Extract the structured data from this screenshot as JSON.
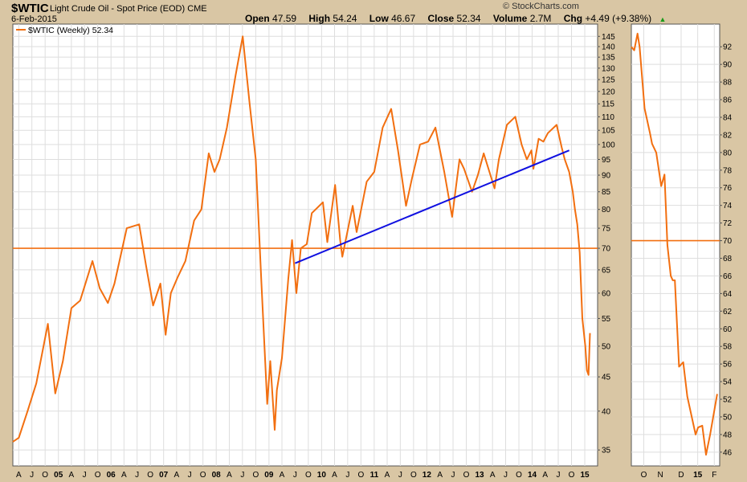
{
  "header": {
    "symbol": "$WTIC",
    "description": "Light Crude Oil - Spot Price (EOD)",
    "exchange": "CME",
    "date": "6-Feb-2015",
    "brand": "© StockCharts.com",
    "open_label": "Open",
    "open": "47.59",
    "high_label": "High",
    "high": "54.24",
    "low_label": "Low",
    "low": "46.67",
    "close_label": "Close",
    "close": "52.34",
    "volume_label": "Volume",
    "volume": "2.7M",
    "chg_label": "Chg",
    "chg": "+4.49 (+9.38%)",
    "chg_arrow": "▲"
  },
  "colors": {
    "price": "#f26f10",
    "trendline": "#1010e0",
    "frame": "#d9c6a4",
    "grid": "#dedede"
  },
  "chart_data": [
    {
      "type": "line",
      "scale": "log",
      "legend": "$WTIC (Weekly) 52.34",
      "legend_position": "top-left",
      "grid": true,
      "y_ticks": [
        35,
        40,
        45,
        50,
        55,
        60,
        65,
        70,
        75,
        80,
        85,
        90,
        95,
        100,
        105,
        110,
        115,
        120,
        125,
        130,
        135,
        140,
        145
      ],
      "ylim": [
        33.5,
        150
      ],
      "x_ticks": [
        "A",
        "J",
        "O",
        "05",
        "A",
        "J",
        "O",
        "06",
        "A",
        "J",
        "O",
        "07",
        "A",
        "J",
        "O",
        "08",
        "A",
        "J",
        "O",
        "09",
        "A",
        "J",
        "O",
        "10",
        "A",
        "J",
        "O",
        "11",
        "A",
        "J",
        "O",
        "12",
        "A",
        "J",
        "O",
        "13",
        "A",
        "J",
        "O",
        "14",
        "A",
        "J",
        "O",
        "15"
      ],
      "x_tick_dates": [
        "2004-04-01",
        "2004-07-01",
        "2004-10-01",
        "2005-01-01",
        "2005-04-01",
        "2005-07-01",
        "2005-10-01",
        "2006-01-01",
        "2006-04-01",
        "2006-07-01",
        "2006-10-01",
        "2007-01-01",
        "2007-04-01",
        "2007-07-01",
        "2007-10-01",
        "2008-01-01",
        "2008-04-01",
        "2008-07-01",
        "2008-10-01",
        "2009-01-01",
        "2009-04-01",
        "2009-07-01",
        "2009-10-01",
        "2010-01-01",
        "2010-04-01",
        "2010-07-01",
        "2010-10-01",
        "2011-01-01",
        "2011-04-01",
        "2011-07-01",
        "2011-10-01",
        "2012-01-01",
        "2012-04-01",
        "2012-07-01",
        "2012-10-01",
        "2013-01-01",
        "2013-04-01",
        "2013-07-01",
        "2013-10-01",
        "2014-01-01",
        "2014-04-01",
        "2014-07-01",
        "2014-10-01",
        "2015-01-01"
      ],
      "x_range": [
        "2004-02-20",
        "2015-02-20"
      ],
      "series": [
        {
          "color": "#f26f10",
          "x": [
            "2004-02-20",
            "2004-04-01",
            "2004-06-01",
            "2004-08-01",
            "2004-10-20",
            "2004-12-10",
            "2005-02-01",
            "2005-04-01",
            "2005-06-01",
            "2005-08-25",
            "2005-10-15",
            "2005-12-10",
            "2006-01-25",
            "2006-04-20",
            "2006-07-15",
            "2006-09-01",
            "2006-10-20",
            "2006-12-10",
            "2007-01-15",
            "2007-02-20",
            "2007-04-10",
            "2007-06-01",
            "2007-08-01",
            "2007-09-20",
            "2007-11-10",
            "2007-12-20",
            "2008-01-25",
            "2008-03-15",
            "2008-05-15",
            "2008-07-03",
            "2008-08-20",
            "2008-10-01",
            "2008-11-10",
            "2008-12-20",
            "2009-01-10",
            "2009-02-10",
            "2009-02-25",
            "2009-04-01",
            "2009-05-15",
            "2009-06-10",
            "2009-07-10",
            "2009-08-10",
            "2009-09-20",
            "2009-10-25",
            "2010-01-10",
            "2010-02-10",
            "2010-04-05",
            "2010-05-10",
            "2010-05-25",
            "2010-08-05",
            "2010-09-01",
            "2010-11-10",
            "2011-01-01",
            "2011-03-01",
            "2011-04-29",
            "2011-06-15",
            "2011-08-10",
            "2011-09-20",
            "2011-11-15",
            "2012-01-10",
            "2012-03-01",
            "2012-05-01",
            "2012-06-25",
            "2012-08-15",
            "2012-09-15",
            "2012-11-10",
            "2012-12-20",
            "2013-01-30",
            "2013-04-15",
            "2013-05-15",
            "2013-07-10",
            "2013-09-06",
            "2013-10-20",
            "2013-11-25",
            "2013-12-27",
            "2014-01-10",
            "2014-02-15",
            "2014-03-20",
            "2014-04-20",
            "2014-06-20",
            "2014-07-25",
            "2014-08-15",
            "2014-09-15",
            "2014-10-10",
            "2014-10-25",
            "2014-11-10",
            "2014-11-27",
            "2014-12-15",
            "2015-01-05",
            "2015-01-16",
            "2015-01-27",
            "2015-02-06"
          ],
          "y": [
            36,
            36.5,
            40,
            44,
            54,
            42.5,
            47.5,
            57,
            58.5,
            67,
            61,
            58,
            62,
            75,
            76,
            66,
            57.5,
            62,
            52,
            60,
            63.5,
            67,
            77,
            80,
            97,
            91,
            95,
            106,
            127,
            145,
            115,
            95,
            62,
            41,
            47.5,
            37.5,
            43,
            48,
            63,
            72,
            60,
            70,
            71,
            79,
            82,
            71.5,
            87,
            72,
            68,
            81,
            74,
            88,
            91,
            106,
            113,
            98,
            81,
            89,
            100,
            101,
            106,
            91,
            78,
            95,
            92,
            85,
            90,
            97,
            86,
            95,
            107,
            110,
            100,
            95,
            98,
            92,
            102,
            101,
            104,
            107,
            99,
            95,
            91,
            85,
            80,
            76,
            69,
            55,
            50,
            46,
            45.3,
            52.3
          ]
        }
      ],
      "horizontal_line": 70,
      "trendline": {
        "x": [
          "2009-07-01",
          "2014-09-15"
        ],
        "y": [
          66.5,
          98
        ]
      }
    },
    {
      "type": "line",
      "scale": "linear",
      "grid": true,
      "y_ticks": [
        46,
        48,
        50,
        52,
        54,
        56,
        58,
        60,
        62,
        64,
        66,
        68,
        70,
        72,
        74,
        76,
        78,
        80,
        82,
        84,
        86,
        88,
        90,
        92
      ],
      "ylim": [
        44.8,
        94.3
      ],
      "x_ticks": [
        "O",
        "N",
        "D",
        "15",
        "F"
      ],
      "x_tick_index": [
        3,
        7,
        12,
        16,
        20
      ],
      "x_range": [
        0,
        21.3
      ],
      "series": [
        {
          "color": "#f26f10",
          "x": [
            0,
            0.7,
            1.5,
            2,
            3.2,
            4.5,
            5,
            6,
            7.2,
            8,
            8.7,
            9.5,
            10,
            10.5,
            11.5,
            12.5,
            13.5,
            15.5,
            16.1,
            17.1,
            18,
            19,
            20.7
          ],
          "y": [
            92,
            91.6,
            93.5,
            92,
            85,
            82.2,
            81,
            80,
            76.2,
            77.5,
            69.5,
            66,
            65.5,
            65.5,
            55.7,
            56.2,
            52.3,
            48,
            48.8,
            49,
            45.7,
            48,
            52.6
          ]
        }
      ],
      "horizontal_line": 70
    }
  ]
}
